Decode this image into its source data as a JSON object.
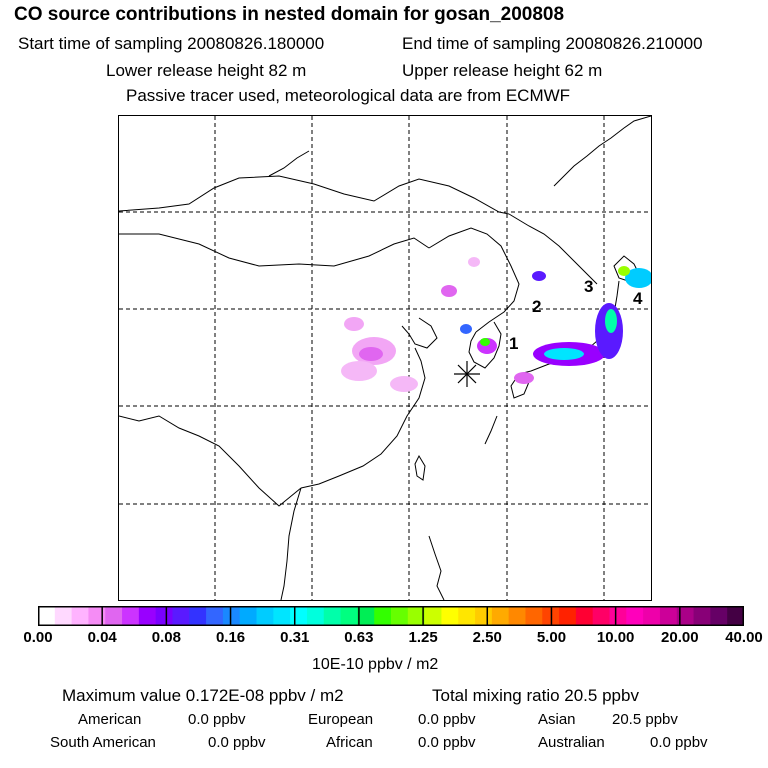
{
  "header": {
    "title": "CO  source contributions in nested domain for gosan_200808",
    "start_time": "Start time of sampling 20080826.180000",
    "end_time": "End time of sampling 20080826.210000",
    "lower_release": "Lower release height   82 m",
    "upper_release": "Upper release height   62 m",
    "tracer_note": "Passive tracer used, meteorological data are from ECMWF"
  },
  "map": {
    "region_labels": [
      "1",
      "2",
      "3",
      "4"
    ],
    "source_marker": "asterisk"
  },
  "colorbar": {
    "tick_labels": [
      "0.00",
      "0.04",
      "0.08",
      "0.16",
      "0.31",
      "0.63",
      "1.25",
      "2.50",
      "5.00",
      "10.00",
      "20.00",
      "40.00"
    ],
    "colors": [
      "#ffffff",
      "#ffd9ff",
      "#ffb3ff",
      "#f58cf5",
      "#e066f0",
      "#cc33ff",
      "#9900ff",
      "#7a00ff",
      "#5a1aff",
      "#3333ff",
      "#3366ff",
      "#1a88ff",
      "#00aaff",
      "#00ccff",
      "#00e5ff",
      "#00ffff",
      "#00ffdd",
      "#00ffaa",
      "#00ff80",
      "#00ee55",
      "#33ff00",
      "#66ff00",
      "#99ff00",
      "#ccff00",
      "#ffff00",
      "#ffe600",
      "#ffcc00",
      "#ffaa00",
      "#ff8800",
      "#ff6600",
      "#ff4400",
      "#ff2200",
      "#ff0033",
      "#ff0066",
      "#ff0099",
      "#ff00bb",
      "#ee00aa",
      "#cc0099",
      "#aa0088",
      "#880077",
      "#660066",
      "#440044"
    ],
    "units": "10E-10 ppbv / m2"
  },
  "summary": {
    "max_value": "Maximum value  0.172E-08 ppbv / m2",
    "total_mixing_ratio": "Total mixing ratio       20.5 ppbv"
  },
  "regions": [
    {
      "name": "American",
      "value": "0.0 ppbv"
    },
    {
      "name": "European",
      "value": "0.0 ppbv"
    },
    {
      "name": "Asian",
      "value": "20.5 ppbv"
    },
    {
      "name": "South American",
      "value": "0.0 ppbv"
    },
    {
      "name": "African",
      "value": "0.0 ppbv"
    },
    {
      "name": "Australian",
      "value": "0.0 ppbv"
    }
  ]
}
